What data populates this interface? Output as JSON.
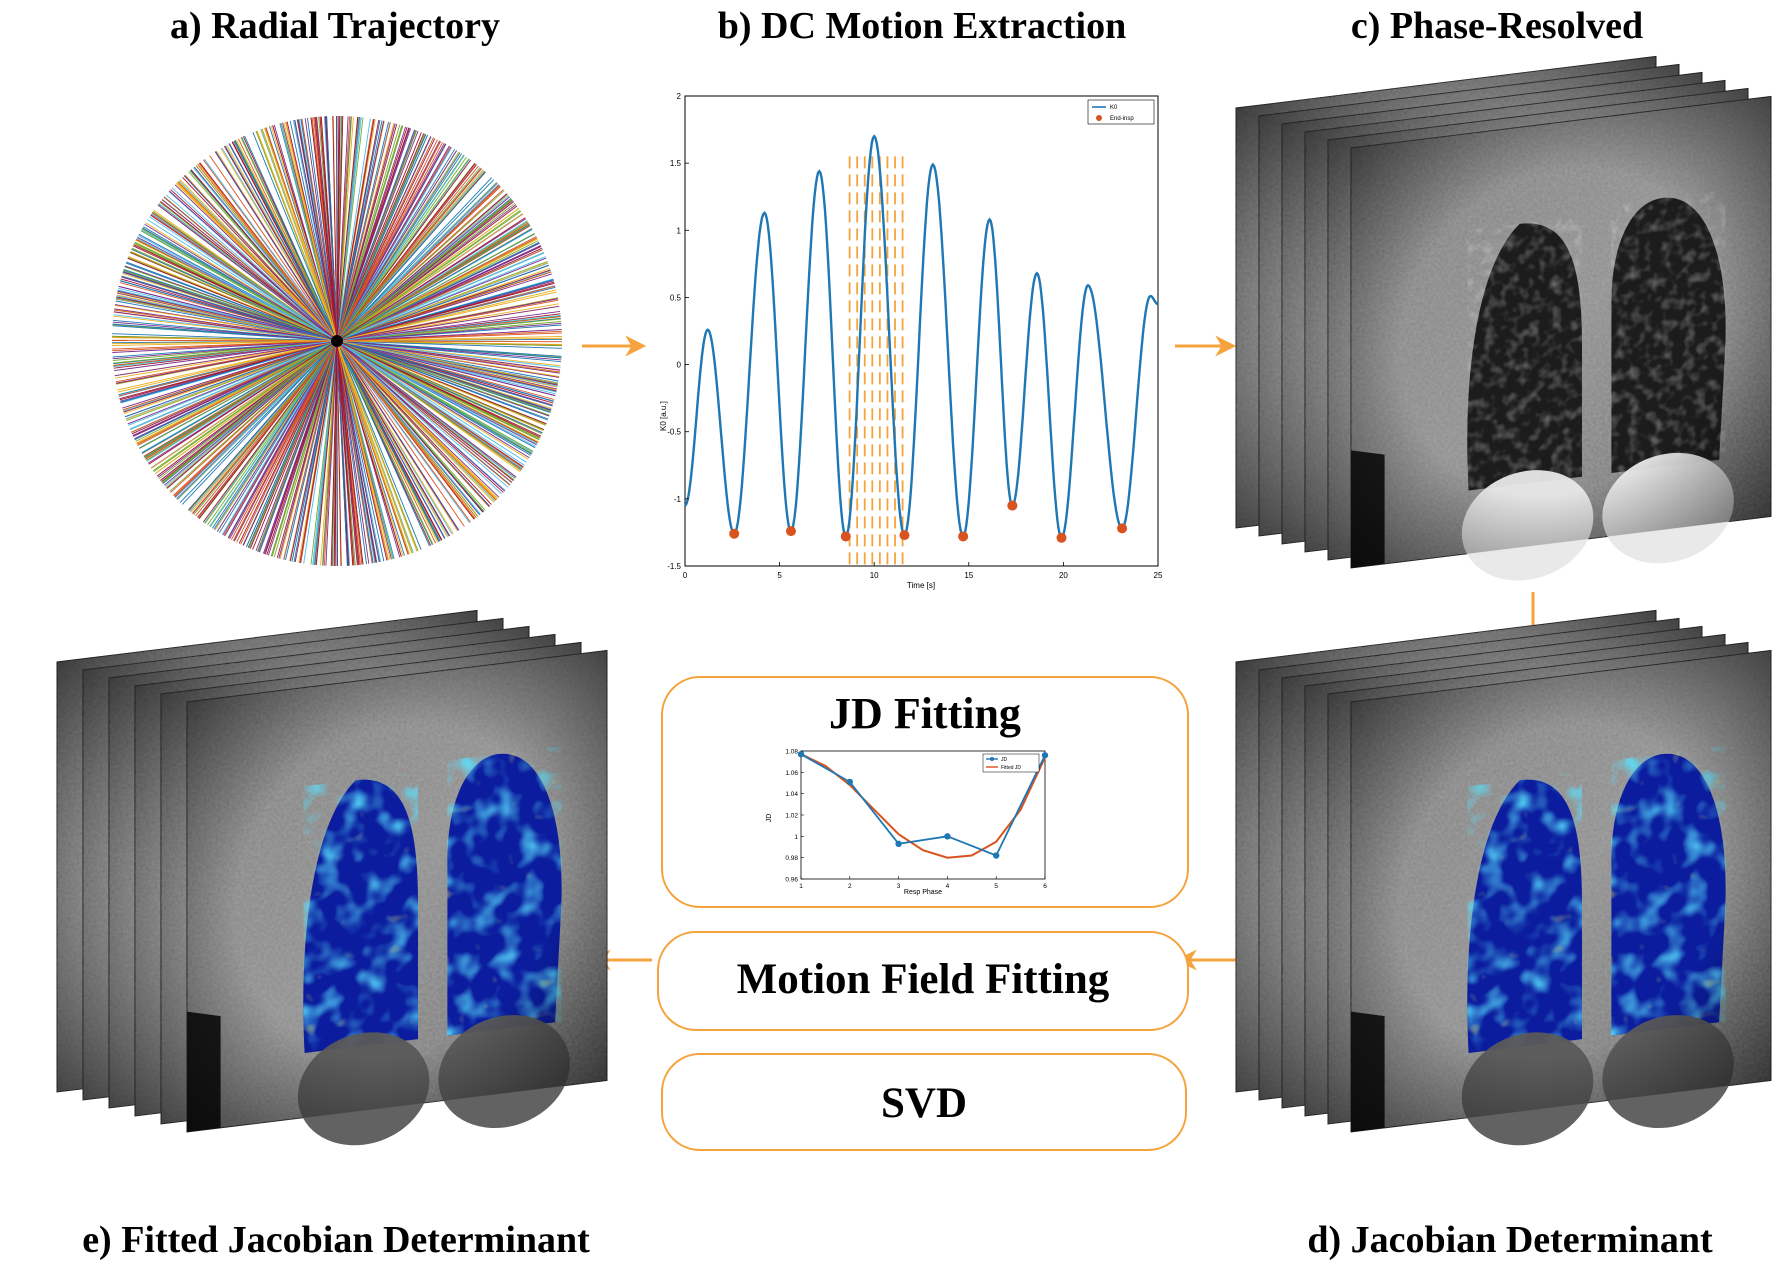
{
  "titles": {
    "a": "a) Radial Trajectory",
    "b": "b) DC Motion Extraction",
    "c": "c) Phase-Resolved",
    "d": "d) Jacobian Determinant",
    "e": "e) Fitted Jacobian Determinant"
  },
  "boxes": {
    "jd_fitting": "JD Fitting",
    "motion_field": "Motion Field Fitting",
    "svd": "SVD"
  },
  "colors": {
    "arrow": "#f5a33d",
    "box_border": "#f5a33d",
    "line_blue": "#1f77b4",
    "marker_orange": "#d9531e",
    "dash_orange": "#f5a33d"
  },
  "chart_data": [
    {
      "type": "line",
      "title": "",
      "xlabel": "Time [s]",
      "ylabel": "K0 [a.u.]",
      "xlim": [
        0,
        25
      ],
      "ylim": [
        -1.5,
        2
      ],
      "xticks": [
        "0",
        "5",
        "10",
        "15",
        "20",
        "25"
      ],
      "yticks": [
        "-1.5",
        "-1",
        "-0.5",
        "0",
        "0.5",
        "1",
        "1.5",
        "2"
      ],
      "legend": [
        "K0",
        "End-insp"
      ],
      "legend_position": "top-right",
      "peaks": [
        {
          "t": 1.2,
          "v": 0.26
        },
        {
          "t": 4.2,
          "v": 1.13
        },
        {
          "t": 7.1,
          "v": 1.44
        },
        {
          "t": 10.0,
          "v": 1.7
        },
        {
          "t": 13.1,
          "v": 1.49
        },
        {
          "t": 16.1,
          "v": 1.08
        },
        {
          "t": 18.6,
          "v": 0.68
        },
        {
          "t": 21.3,
          "v": 0.59
        },
        {
          "t": 24.6,
          "v": 0.51
        }
      ],
      "troughs": [
        {
          "t": 2.6,
          "v": -1.26
        },
        {
          "t": 5.6,
          "v": -1.24
        },
        {
          "t": 8.5,
          "v": -1.28
        },
        {
          "t": 11.6,
          "v": -1.27
        },
        {
          "t": 14.7,
          "v": -1.28
        },
        {
          "t": 17.3,
          "v": -1.05
        },
        {
          "t": 19.9,
          "v": -1.29
        },
        {
          "t": 23.1,
          "v": -1.22
        }
      ],
      "series": [
        {
          "name": "End-insp",
          "x": [
            2.6,
            5.6,
            8.5,
            11.6,
            14.7,
            17.3,
            19.9,
            23.1
          ],
          "y": [
            -1.26,
            -1.24,
            -1.28,
            -1.27,
            -1.28,
            -1.05,
            -1.29,
            -1.22
          ]
        }
      ],
      "dashes_t": [
        8.7,
        9.1,
        9.5,
        9.9,
        10.3,
        10.7,
        11.1,
        11.5
      ]
    },
    {
      "type": "line",
      "title": "",
      "xlabel": "Resp Phase",
      "ylabel": "JD",
      "xlim": [
        1,
        6
      ],
      "ylim": [
        0.96,
        1.08
      ],
      "xticks": [
        "1",
        "2",
        "3",
        "4",
        "5",
        "6"
      ],
      "yticks": [
        "0.96",
        "0.98",
        "1",
        "1.02",
        "1.04",
        "1.06",
        "1.08"
      ],
      "legend": [
        "JD",
        "Fitted JD"
      ],
      "legend_position": "top-right",
      "series": [
        {
          "name": "JD",
          "x": [
            1,
            2,
            3,
            4,
            5,
            6
          ],
          "y": [
            1.077,
            1.051,
            0.993,
            1.0,
            0.982,
            1.076
          ]
        },
        {
          "name": "Fitted JD",
          "x": [
            1,
            1.5,
            2,
            2.5,
            3,
            3.5,
            4,
            4.5,
            5,
            5.5,
            6
          ],
          "y": [
            1.077,
            1.066,
            1.048,
            1.025,
            1.002,
            0.987,
            0.98,
            0.982,
            0.995,
            1.025,
            1.074
          ]
        }
      ]
    }
  ]
}
